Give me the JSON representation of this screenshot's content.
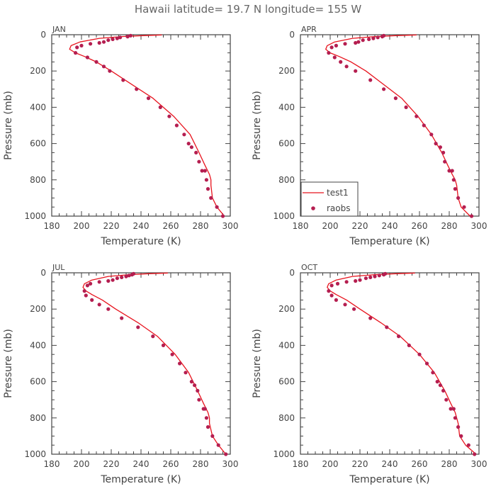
{
  "title": "Hawaii  latitude= 19.7 N longitude= 155 W",
  "legend": {
    "line_label": "test1",
    "marker_label": "raobs",
    "placement": "lower-left of APR panel"
  },
  "colors": {
    "line": "#e8141e",
    "marker": "#b51e50",
    "axes": "#444444",
    "text": "#555555"
  },
  "chart_data": [
    {
      "type": "line",
      "panel": "JAN",
      "xlabel": "Temperature (K)",
      "ylabel": "Pressure (mb)",
      "xlim": [
        180,
        300
      ],
      "ylim": [
        1000,
        0
      ],
      "xticks": [
        180,
        200,
        220,
        240,
        260,
        280,
        300
      ],
      "yticks": [
        0,
        200,
        400,
        600,
        800,
        1000
      ],
      "series": [
        {
          "name": "test1",
          "kind": "line",
          "x": [
            254,
            241,
            227,
            212,
            199,
            193,
            192,
            196,
            202,
            210,
            220,
            234,
            248,
            262,
            273,
            279,
            283,
            286,
            287,
            287,
            288,
            291,
            296
          ],
          "y": [
            1,
            5,
            10,
            20,
            40,
            60,
            80,
            100,
            120,
            150,
            200,
            275,
            350,
            450,
            550,
            650,
            720,
            770,
            800,
            830,
            900,
            950,
            1000
          ]
        },
        {
          "name": "raobs",
          "kind": "scatter",
          "x": [
            233,
            231,
            226,
            224,
            221,
            218,
            215,
            212,
            206,
            200,
            197,
            196,
            204,
            210,
            215,
            219,
            228,
            237,
            245,
            253,
            259,
            264,
            269,
            272,
            274,
            277,
            279,
            281,
            283,
            284,
            285,
            287,
            291,
            295
          ],
          "y": [
            5,
            10,
            15,
            20,
            25,
            30,
            40,
            45,
            50,
            60,
            70,
            100,
            125,
            150,
            175,
            200,
            250,
            300,
            350,
            400,
            450,
            500,
            550,
            600,
            620,
            650,
            700,
            750,
            750,
            800,
            850,
            900,
            950,
            1000
          ]
        }
      ]
    },
    {
      "type": "line",
      "panel": "APR",
      "xlabel": "Temperature (K)",
      "ylabel": "Pressure (mb)",
      "xlim": [
        180,
        300
      ],
      "ylim": [
        1000,
        0
      ],
      "xticks": [
        180,
        200,
        220,
        240,
        260,
        280,
        300
      ],
      "yticks": [
        0,
        200,
        400,
        600,
        800,
        1000
      ],
      "series": [
        {
          "name": "test1",
          "kind": "line",
          "x": [
            258,
            244,
            230,
            215,
            203,
            198,
            197,
            200,
            206,
            214,
            224,
            236,
            248,
            259,
            268,
            275,
            279,
            282,
            284,
            285,
            286,
            288,
            294
          ],
          "y": [
            1,
            5,
            10,
            20,
            40,
            60,
            80,
            100,
            120,
            150,
            200,
            275,
            350,
            450,
            550,
            650,
            720,
            770,
            800,
            830,
            900,
            950,
            1000
          ]
        },
        {
          "name": "raobs",
          "kind": "scatter",
          "x": [
            236,
            235,
            232,
            229,
            226,
            222,
            219,
            217,
            210,
            204,
            201,
            199,
            203,
            207,
            211,
            217,
            227,
            236,
            244,
            251,
            258,
            263,
            268,
            271,
            274,
            276,
            277,
            280,
            282,
            283,
            284,
            286,
            290,
            295
          ],
          "y": [
            5,
            10,
            15,
            20,
            25,
            30,
            40,
            45,
            50,
            60,
            70,
            100,
            125,
            150,
            175,
            200,
            250,
            300,
            350,
            400,
            450,
            500,
            550,
            600,
            620,
            650,
            700,
            750,
            750,
            800,
            850,
            900,
            950,
            1000
          ]
        }
      ]
    },
    {
      "type": "line",
      "panel": "JUL",
      "xlabel": "Temperature (K)",
      "ylabel": "Pressure (mb)",
      "xlim": [
        180,
        300
      ],
      "ylim": [
        1000,
        0
      ],
      "xticks": [
        180,
        200,
        220,
        240,
        260,
        280,
        300
      ],
      "yticks": [
        0,
        200,
        400,
        600,
        800,
        1000
      ],
      "series": [
        {
          "name": "test1",
          "kind": "line",
          "x": [
            258,
            245,
            232,
            218,
            207,
            202,
            201,
            203,
            207,
            214,
            223,
            238,
            251,
            263,
            272,
            278,
            282,
            285,
            286,
            286,
            288,
            292,
            297
          ],
          "y": [
            1,
            5,
            10,
            20,
            40,
            60,
            80,
            100,
            120,
            150,
            200,
            275,
            350,
            450,
            550,
            650,
            720,
            770,
            800,
            830,
            900,
            950,
            1000
          ]
        },
        {
          "name": "raobs",
          "kind": "scatter",
          "x": [
            235,
            234,
            232,
            230,
            227,
            224,
            221,
            218,
            212,
            206,
            204,
            202,
            203,
            207,
            212,
            218,
            227,
            238,
            248,
            255,
            261,
            266,
            270,
            274,
            276,
            278,
            279,
            282,
            283,
            284,
            285,
            288,
            292,
            297
          ],
          "y": [
            5,
            10,
            15,
            20,
            25,
            30,
            40,
            45,
            50,
            60,
            70,
            100,
            125,
            150,
            175,
            200,
            250,
            300,
            350,
            400,
            450,
            500,
            550,
            600,
            620,
            650,
            700,
            750,
            750,
            800,
            850,
            900,
            950,
            1000
          ]
        }
      ]
    },
    {
      "type": "line",
      "panel": "OCT",
      "xlabel": "Temperature (K)",
      "ylabel": "Pressure (mb)",
      "xlim": [
        180,
        300
      ],
      "ylim": [
        1000,
        0
      ],
      "xticks": [
        180,
        200,
        220,
        240,
        260,
        280,
        300
      ],
      "yticks": [
        0,
        200,
        400,
        600,
        800,
        1000
      ],
      "series": [
        {
          "name": "test1",
          "kind": "line",
          "x": [
            257,
            244,
            230,
            215,
            204,
            199,
            198,
            200,
            204,
            211,
            220,
            234,
            247,
            260,
            270,
            277,
            281,
            284,
            285,
            286,
            287,
            291,
            298
          ],
          "y": [
            1,
            5,
            10,
            20,
            40,
            60,
            80,
            100,
            120,
            150,
            200,
            275,
            350,
            450,
            550,
            650,
            720,
            770,
            800,
            830,
            900,
            950,
            1000
          ]
        },
        {
          "name": "raobs",
          "kind": "scatter",
          "x": [
            237,
            236,
            233,
            230,
            227,
            224,
            220,
            217,
            211,
            205,
            201,
            199,
            201,
            204,
            210,
            216,
            227,
            238,
            246,
            253,
            260,
            265,
            269,
            272,
            274,
            276,
            278,
            281,
            283,
            284,
            286,
            288,
            293,
            297
          ],
          "y": [
            5,
            10,
            15,
            20,
            25,
            30,
            40,
            45,
            50,
            60,
            70,
            100,
            125,
            150,
            175,
            200,
            250,
            300,
            350,
            400,
            450,
            500,
            550,
            600,
            620,
            650,
            700,
            750,
            750,
            800,
            850,
            900,
            950,
            1000
          ]
        }
      ]
    }
  ]
}
